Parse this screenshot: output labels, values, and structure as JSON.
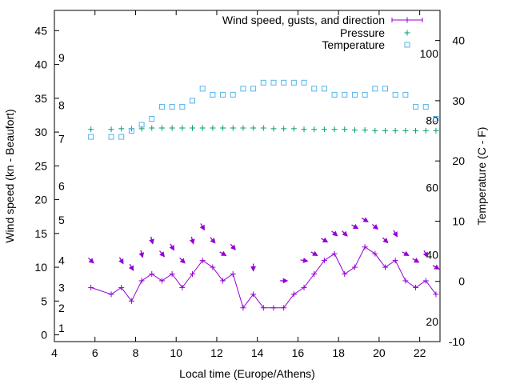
{
  "chart_data": {
    "type": "line",
    "xlabel": "Local time (Europe/Athens)",
    "ylabel_left": "Wind speed (kn - Beaufort)",
    "ylabel_right": "Temperature (C - F)",
    "x_range": [
      4,
      23
    ],
    "x_ticks": [
      "4",
      "6",
      "8",
      "10",
      "12",
      "14",
      "16",
      "18",
      "20",
      "22"
    ],
    "y_left_range": [
      -1,
      48
    ],
    "y_left_ticks": [
      "0",
      "5",
      "10",
      "15",
      "20",
      "25",
      "30",
      "35",
      "40",
      "45"
    ],
    "y_right_range": [
      -10,
      45
    ],
    "y_right_ticks": [
      "-10",
      "0",
      "10",
      "20",
      "30",
      "40"
    ],
    "beaufort_labels": [
      {
        "label": "1",
        "y": 1.0
      },
      {
        "label": "2",
        "y": 4.0
      },
      {
        "label": "3",
        "y": 7.0
      },
      {
        "label": "4",
        "y": 11.0
      },
      {
        "label": "5",
        "y": 17.0
      },
      {
        "label": "6",
        "y": 22.0
      },
      {
        "label": "7",
        "y": 29.0
      },
      {
        "label": "8",
        "y": 34.0
      },
      {
        "label": "9",
        "y": 41.0
      }
    ],
    "fahrenheit_labels": [
      {
        "label": "20",
        "t": -6.7
      },
      {
        "label": "40",
        "t": 4.4
      },
      {
        "label": "60",
        "t": 15.6
      },
      {
        "label": "80",
        "t": 26.7
      },
      {
        "label": "100",
        "t": 37.8
      }
    ],
    "legend_position": "top-right",
    "grid": false,
    "series": [
      {
        "name": "Wind speed, gusts, and direction",
        "axis": "left",
        "color": "#9400d3",
        "x": [
          5.8,
          6.8,
          7.3,
          7.8,
          8.3,
          8.8,
          9.3,
          9.8,
          10.3,
          10.8,
          11.3,
          11.8,
          12.3,
          12.8,
          13.3,
          13.8,
          14.3,
          14.8,
          15.3,
          15.8,
          16.3,
          16.8,
          17.3,
          17.8,
          18.3,
          18.8,
          19.3,
          19.8,
          20.3,
          20.8,
          21.3,
          21.8,
          22.3,
          22.8
        ],
        "values": [
          7,
          6,
          7,
          5,
          8,
          9,
          8,
          9,
          7,
          9,
          11,
          10,
          8,
          9,
          4,
          6,
          4,
          4,
          4,
          6,
          7,
          9,
          11,
          12,
          9,
          10,
          13,
          12,
          10,
          11,
          8,
          7,
          8,
          6
        ],
        "gusts": [
          11,
          null,
          11,
          10,
          12,
          14,
          12,
          13,
          11,
          14,
          16,
          14,
          12,
          13,
          null,
          10,
          null,
          null,
          8,
          null,
          11,
          12,
          14,
          15,
          15,
          16,
          17,
          16,
          14,
          15,
          12,
          11,
          12,
          10
        ],
        "direction_deg": [
          315,
          null,
          330,
          330,
          345,
          345,
          320,
          330,
          315,
          345,
          330,
          320,
          300,
          320,
          null,
          0,
          null,
          null,
          270,
          null,
          280,
          300,
          300,
          310,
          315,
          300,
          300,
          310,
          315,
          330,
          300,
          300,
          330,
          300
        ]
      },
      {
        "name": "Pressure",
        "axis": "left",
        "color": "#009e73",
        "x": [
          5.8,
          6.8,
          7.3,
          7.8,
          8.3,
          8.8,
          9.3,
          9.8,
          10.3,
          10.8,
          11.3,
          11.8,
          12.3,
          12.8,
          13.3,
          13.8,
          14.3,
          14.8,
          15.3,
          15.8,
          16.3,
          16.8,
          17.3,
          17.8,
          18.3,
          18.8,
          19.3,
          19.8,
          20.3,
          20.8,
          21.3,
          21.8,
          22.3,
          22.8
        ],
        "values": [
          30.4,
          30.4,
          30.5,
          30.5,
          30.5,
          30.6,
          30.6,
          30.6,
          30.6,
          30.6,
          30.6,
          30.6,
          30.6,
          30.6,
          30.6,
          30.6,
          30.6,
          30.5,
          30.5,
          30.5,
          30.4,
          30.4,
          30.4,
          30.4,
          30.4,
          30.3,
          30.3,
          30.2,
          30.2,
          30.2,
          30.2,
          30.2,
          30.2,
          30.2
        ]
      },
      {
        "name": "Temperature",
        "axis": "right",
        "color": "#56b4e9",
        "x": [
          5.8,
          6.8,
          7.3,
          7.8,
          8.3,
          8.8,
          9.3,
          9.8,
          10.3,
          10.8,
          11.3,
          11.8,
          12.3,
          12.8,
          13.3,
          13.8,
          14.3,
          14.8,
          15.3,
          15.8,
          16.3,
          16.8,
          17.3,
          17.8,
          18.3,
          18.8,
          19.3,
          19.8,
          20.3,
          20.8,
          21.3,
          21.8,
          22.3,
          22.8
        ],
        "values": [
          24,
          24,
          24,
          25,
          26,
          27,
          29,
          29,
          29,
          30,
          32,
          31,
          31,
          31,
          32,
          32,
          33,
          33,
          33,
          33,
          33,
          32,
          32,
          31,
          31,
          31,
          31,
          32,
          32,
          31,
          31,
          29,
          29,
          27
        ]
      }
    ]
  }
}
